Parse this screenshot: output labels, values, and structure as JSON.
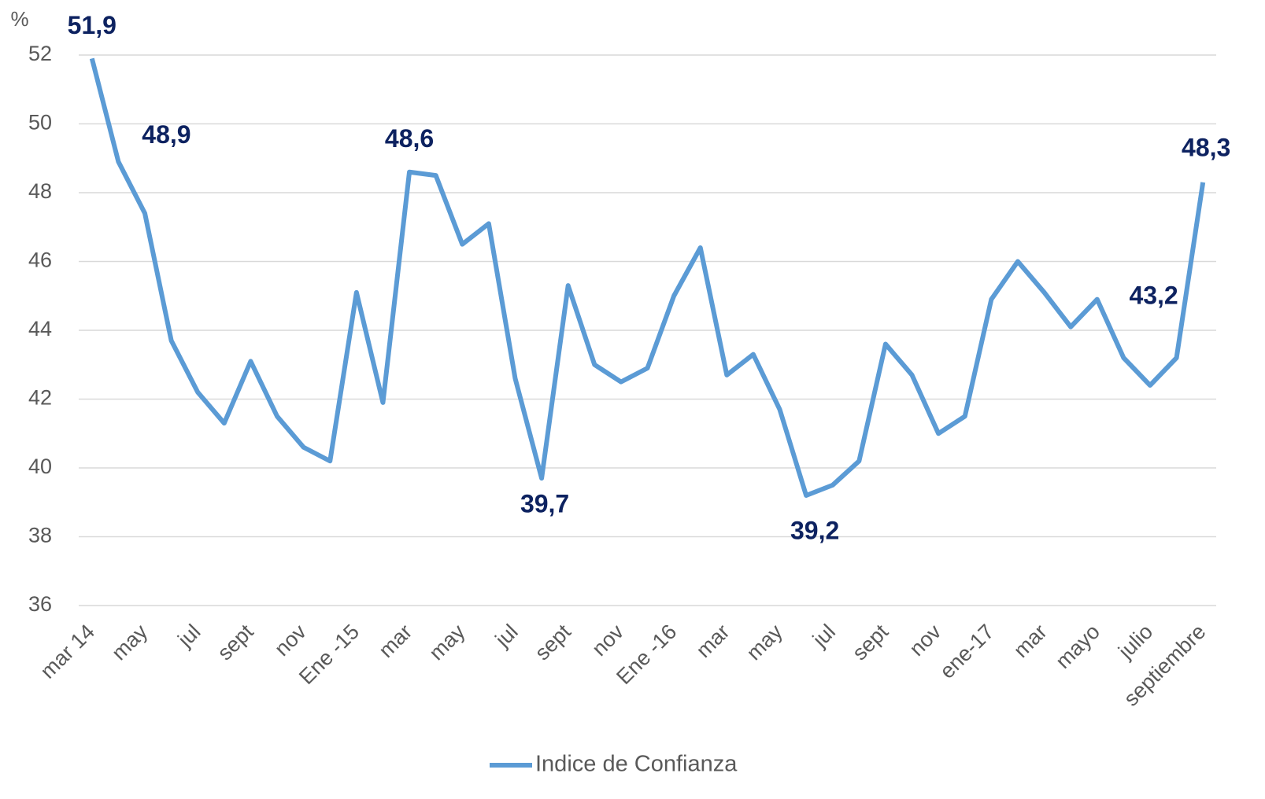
{
  "chart_data": {
    "type": "line",
    "y_label": "%",
    "categories": [
      "mar 14",
      null,
      "may",
      null,
      "jul",
      null,
      "sept",
      null,
      "nov",
      null,
      "Ene -15",
      null,
      "mar",
      null,
      "may",
      null,
      "jul",
      null,
      "sept",
      null,
      "nov",
      null,
      "Ene -16",
      null,
      "mar",
      null,
      "may",
      null,
      "jul",
      null,
      "sept",
      null,
      "nov",
      null,
      "ene-17",
      null,
      "mar",
      null,
      "mayo",
      null,
      "julio",
      null,
      "septiembre"
    ],
    "series": [
      {
        "name": "Indice de Confianza",
        "color": "#5b9bd5",
        "values": [
          51.9,
          48.9,
          47.4,
          43.7,
          42.2,
          41.3,
          43.1,
          41.5,
          40.6,
          40.2,
          45.1,
          41.9,
          48.6,
          48.5,
          46.5,
          47.1,
          42.6,
          39.7,
          45.3,
          43.0,
          42.5,
          42.9,
          45.0,
          46.4,
          42.7,
          43.3,
          41.7,
          39.2,
          39.5,
          40.2,
          43.6,
          42.7,
          41.0,
          41.5,
          44.9,
          46.0,
          45.1,
          44.1,
          44.9,
          43.2,
          42.4,
          43.2,
          48.3
        ],
        "value_labels": [
          "51,9",
          "48,9",
          null,
          null,
          null,
          null,
          null,
          null,
          null,
          null,
          null,
          null,
          "48,6",
          null,
          null,
          null,
          null,
          "39,7",
          null,
          null,
          null,
          null,
          null,
          null,
          null,
          null,
          null,
          "39,2",
          null,
          null,
          null,
          null,
          null,
          null,
          null,
          null,
          null,
          null,
          null,
          null,
          null,
          "43,2",
          "48,3"
        ],
        "label_color": "#0d2260"
      }
    ],
    "ylim": [
      36,
      52
    ],
    "yticks": [
      36,
      38,
      40,
      42,
      44,
      46,
      48,
      50,
      52
    ],
    "grid": true,
    "legend": "bottom"
  }
}
